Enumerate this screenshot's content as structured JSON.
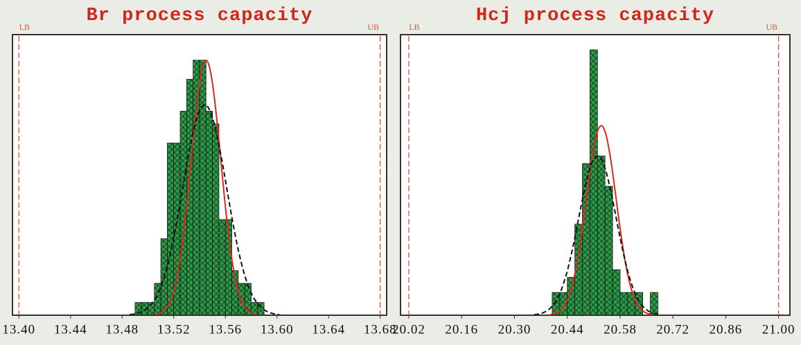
{
  "chart_data": [
    {
      "type": "histogram",
      "title": "Br process capacity",
      "color": "#2e9a4a",
      "hatch_color": "#0d3a18",
      "title_color": "#d0261c",
      "bins": [
        13.49,
        13.495,
        13.5,
        13.505,
        13.51,
        13.515,
        13.52,
        13.525,
        13.53,
        13.535,
        13.54,
        13.545,
        13.55,
        13.555,
        13.56,
        13.565,
        13.57,
        13.575,
        13.58,
        13.585,
        13.59
      ],
      "counts": [
        2,
        2,
        2,
        5,
        12,
        27,
        27,
        32,
        37,
        40,
        40,
        32,
        30,
        15,
        15,
        7,
        5,
        5,
        2,
        2
      ],
      "xlim": [
        13.395,
        13.685
      ],
      "ylim": [
        0,
        44
      ],
      "xticks": [
        {
          "value": 13.4,
          "label": "13.40"
        },
        {
          "value": 13.44,
          "label": "13.44"
        },
        {
          "value": 13.48,
          "label": "13.48"
        },
        {
          "value": 13.52,
          "label": "13.52"
        },
        {
          "value": 13.56,
          "label": "13.56"
        },
        {
          "value": 13.6,
          "label": "13.60"
        },
        {
          "value": 13.64,
          "label": "13.64"
        },
        {
          "value": 13.68,
          "label": "13.68"
        }
      ],
      "limits": [
        {
          "label": "LB",
          "value": 13.4
        },
        {
          "label": "UB",
          "value": 13.68
        }
      ],
      "limit_color": "#e0503c",
      "fits": [
        {
          "color": "#e0261c",
          "dashed": false,
          "mean": 13.545,
          "sd": 0.0115,
          "peak": 40
        },
        {
          "color": "#111111",
          "dashed": true,
          "mean": 13.544,
          "sd": 0.017,
          "peak": 33
        }
      ]
    },
    {
      "type": "histogram",
      "title": "Hcj process capacity",
      "color": "#2e9a4a",
      "hatch_color": "#0d3a18",
      "title_color": "#d0261c",
      "bins": [
        20.4,
        20.42,
        20.44,
        20.46,
        20.48,
        20.5,
        20.52,
        20.54,
        20.56,
        20.58,
        20.6,
        20.62,
        20.64,
        20.66,
        20.68
      ],
      "counts": [
        3,
        3,
        5,
        12,
        20,
        35,
        21,
        17,
        6,
        3,
        3,
        3,
        0,
        3
      ],
      "xlim": [
        19.998,
        21.03
      ],
      "ylim": [
        0,
        37
      ],
      "xticks": [
        {
          "value": 20.02,
          "label": "20.02"
        },
        {
          "value": 20.16,
          "label": "20.16"
        },
        {
          "value": 20.3,
          "label": "20.30"
        },
        {
          "value": 20.44,
          "label": "20.44"
        },
        {
          "value": 20.58,
          "label": "20.58"
        },
        {
          "value": 20.72,
          "label": "20.72"
        },
        {
          "value": 20.86,
          "label": "20.86"
        },
        {
          "value": 21.0,
          "label": "21.00"
        }
      ],
      "limits": [
        {
          "label": "LB",
          "value": 20.02
        },
        {
          "label": "UB",
          "value": 21.0
        }
      ],
      "limit_color": "#e0503c",
      "fits": [
        {
          "color": "#e0261c",
          "dashed": false,
          "mean": 20.53,
          "sd": 0.04,
          "peak": 25
        },
        {
          "color": "#111111",
          "dashed": true,
          "mean": 20.52,
          "sd": 0.05,
          "peak": 21
        }
      ]
    }
  ]
}
